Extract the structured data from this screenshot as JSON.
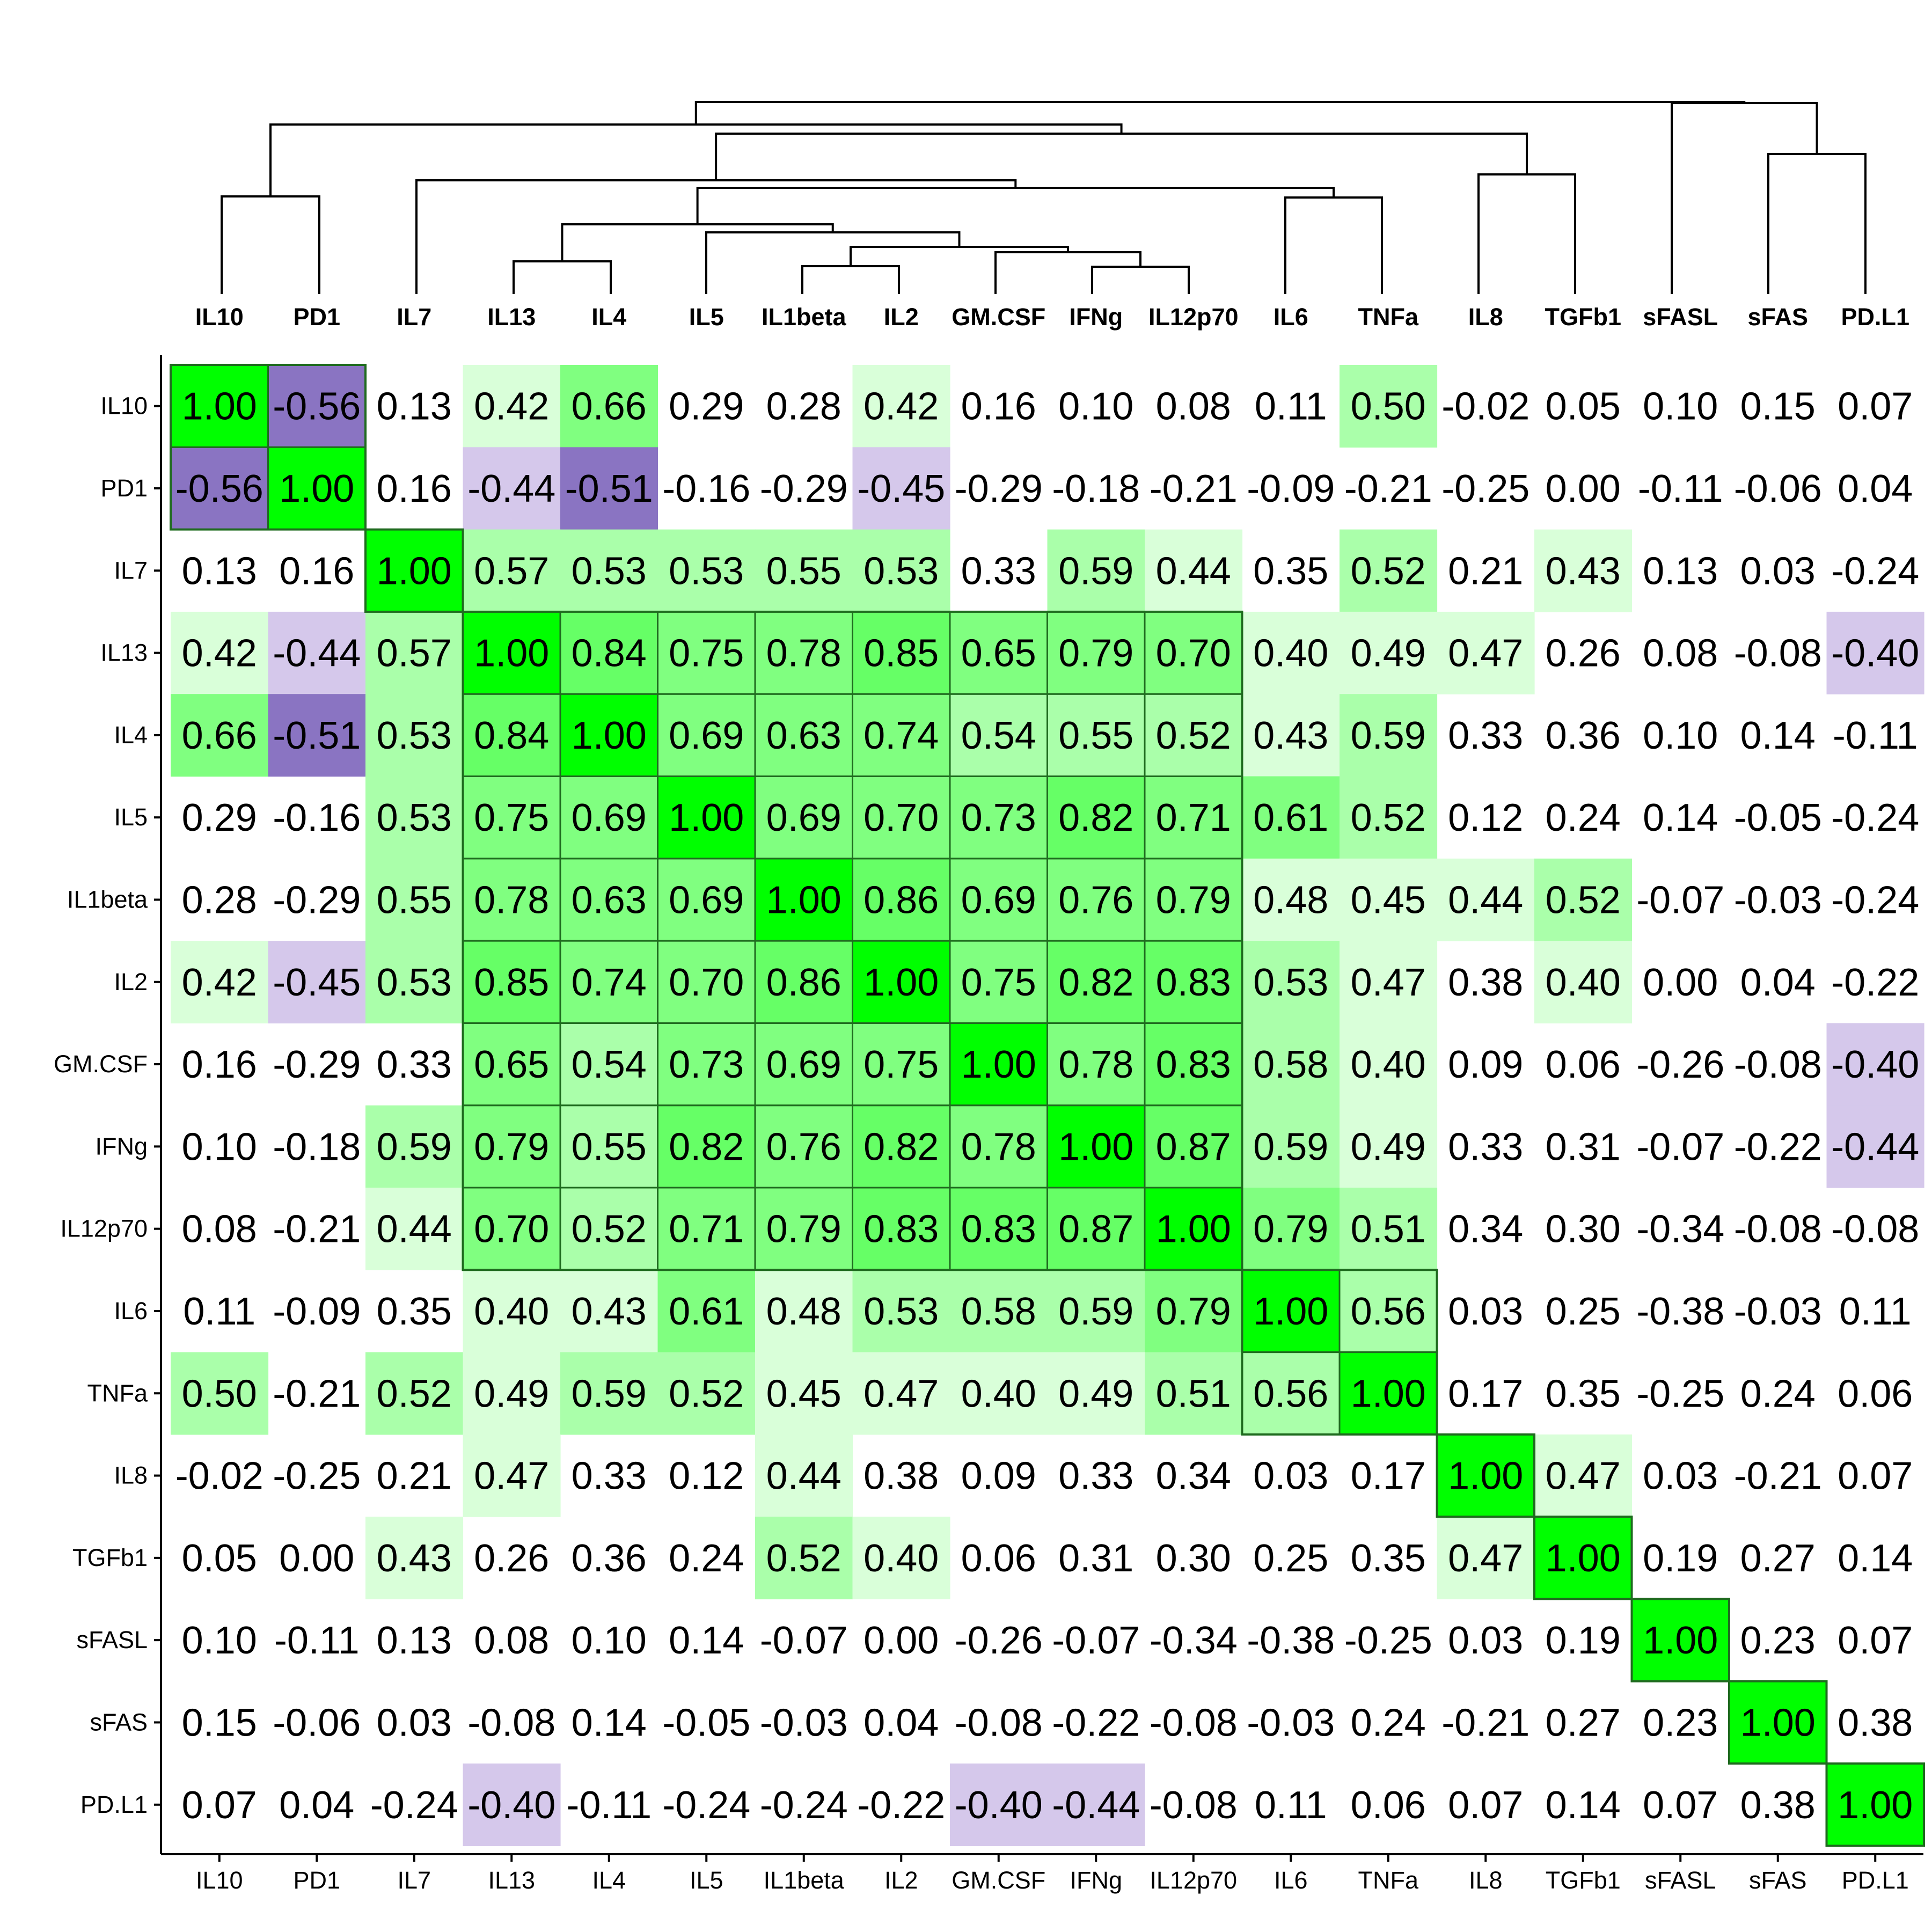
{
  "chart_data": {
    "type": "heatmap",
    "variables": [
      "IL10",
      "PD1",
      "IL7",
      "IL13",
      "IL4",
      "IL5",
      "IL1beta",
      "IL2",
      "GM.CSF",
      "IFNg",
      "IL12p70",
      "IL6",
      "TNFa",
      "IL8",
      "TGFb1",
      "sFASL",
      "sFAS",
      "PD.L1"
    ],
    "tick_text": [
      "0.00",
      "1.00",
      "0.08",
      "0.10",
      "0.11",
      "0.13",
      "0.16",
      "0.05",
      "0.15",
      "0.07",
      "0.04",
      "0.03",
      "0.14",
      "0.06",
      "-0.02",
      "-0.03",
      "-0.05",
      "-0.06",
      "-0.07",
      "-0.08",
      "-0.09",
      "-0.11",
      "-0.16",
      "-0.18",
      "-0.21",
      "-0.22",
      "-0.24",
      "-0.25",
      "-0.26",
      "-0.29",
      "-0.34",
      "-0.38",
      "-0.40",
      "-0.44",
      "-0.45",
      "-0.51",
      "-0.56"
    ],
    "values": [
      [
        "1.00",
        "-0.56",
        "0.13",
        "0.42",
        "0.66",
        "0.29",
        "0.28",
        "0.42",
        "0.16",
        "0.10",
        "0.08",
        "0.11",
        "0.50",
        "-0.02",
        "0.05",
        "0.10",
        "0.15",
        "0.07"
      ],
      [
        "-0.56",
        "1.00",
        "0.16",
        "-0.44",
        "-0.51",
        "-0.16",
        "-0.29",
        "-0.45",
        "-0.29",
        "-0.18",
        "-0.21",
        "-0.09",
        "-0.21",
        "-0.25",
        "0.00",
        "-0.11",
        "-0.06",
        "0.04"
      ],
      [
        "0.13",
        "0.16",
        "1.00",
        "0.57",
        "0.53",
        "0.53",
        "0.55",
        "0.53",
        "0.33",
        "0.59",
        "0.44",
        "0.35",
        "0.52",
        "0.21",
        "0.43",
        "0.13",
        "0.03",
        "-0.24"
      ],
      [
        "0.42",
        "-0.44",
        "0.57",
        "1.00",
        "0.84",
        "0.75",
        "0.78",
        "0.85",
        "0.65",
        "0.79",
        "0.70",
        "0.40",
        "0.49",
        "0.47",
        "0.26",
        "0.08",
        "-0.08",
        "-0.40"
      ],
      [
        "0.66",
        "-0.51",
        "0.53",
        "0.84",
        "1.00",
        "0.69",
        "0.63",
        "0.74",
        "0.54",
        "0.55",
        "0.52",
        "0.43",
        "0.59",
        "0.33",
        "0.36",
        "0.10",
        "0.14",
        "-0.11"
      ],
      [
        "0.29",
        "-0.16",
        "0.53",
        "0.75",
        "0.69",
        "1.00",
        "0.69",
        "0.70",
        "0.73",
        "0.82",
        "0.71",
        "0.61",
        "0.52",
        "0.12",
        "0.24",
        "0.14",
        "-0.05",
        "-0.24"
      ],
      [
        "0.28",
        "-0.29",
        "0.55",
        "0.78",
        "0.63",
        "0.69",
        "1.00",
        "0.86",
        "0.69",
        "0.76",
        "0.79",
        "0.48",
        "0.45",
        "0.44",
        "0.52",
        "-0.07",
        "-0.03",
        "-0.24"
      ],
      [
        "0.42",
        "-0.45",
        "0.53",
        "0.85",
        "0.74",
        "0.70",
        "0.86",
        "1.00",
        "0.75",
        "0.82",
        "0.83",
        "0.53",
        "0.47",
        "0.38",
        "0.40",
        "0.00",
        "0.04",
        "-0.22"
      ],
      [
        "0.16",
        "-0.29",
        "0.33",
        "0.65",
        "0.54",
        "0.73",
        "0.69",
        "0.75",
        "1.00",
        "0.78",
        "0.83",
        "0.58",
        "0.40",
        "0.09",
        "0.06",
        "-0.26",
        "-0.08",
        "-0.40"
      ],
      [
        "0.10",
        "-0.18",
        "0.59",
        "0.79",
        "0.55",
        "0.82",
        "0.76",
        "0.82",
        "0.78",
        "1.00",
        "0.87",
        "0.59",
        "0.49",
        "0.33",
        "0.31",
        "-0.07",
        "-0.22",
        "-0.44"
      ],
      [
        "0.08",
        "-0.21",
        "0.44",
        "0.70",
        "0.52",
        "0.71",
        "0.79",
        "0.83",
        "0.83",
        "0.87",
        "1.00",
        "0.79",
        "0.51",
        "0.34",
        "0.30",
        "-0.34",
        "-0.08",
        "-0.08"
      ],
      [
        "0.11",
        "-0.09",
        "0.35",
        "0.40",
        "0.43",
        "0.61",
        "0.48",
        "0.53",
        "0.58",
        "0.59",
        "0.79",
        "1.00",
        "0.56",
        "0.03",
        "0.25",
        "-0.38",
        "-0.03",
        "0.11"
      ],
      [
        "0.50",
        "-0.21",
        "0.52",
        "0.49",
        "0.59",
        "0.52",
        "0.45",
        "0.47",
        "0.40",
        "0.49",
        "0.51",
        "0.56",
        "1.00",
        "0.17",
        "0.35",
        "-0.25",
        "0.24",
        "0.06"
      ],
      [
        "-0.02",
        "-0.25",
        "0.21",
        "0.47",
        "0.33",
        "0.12",
        "0.44",
        "0.38",
        "0.09",
        "0.33",
        "0.34",
        "0.03",
        "0.17",
        "1.00",
        "0.47",
        "0.03",
        "-0.21",
        "0.07"
      ],
      [
        "0.05",
        "0.00",
        "0.43",
        "0.26",
        "0.36",
        "0.24",
        "0.52",
        "0.40",
        "0.06",
        "0.31",
        "0.30",
        "0.25",
        "0.35",
        "0.47",
        "1.00",
        "0.19",
        "0.27",
        "0.14"
      ],
      [
        "0.10",
        "-0.11",
        "0.13",
        "0.08",
        "0.10",
        "0.14",
        "-0.07",
        "0.00",
        "-0.26",
        "-0.07",
        "-0.34",
        "-0.38",
        "-0.25",
        "0.03",
        "0.19",
        "1.00",
        "0.23",
        "0.07"
      ],
      [
        "0.15",
        "-0.06",
        "0.03",
        "-0.08",
        "0.14",
        "-0.05",
        "-0.03",
        "0.04",
        "-0.08",
        "-0.22",
        "-0.08",
        "-0.03",
        "0.24",
        "-0.21",
        "0.27",
        "0.23",
        "1.00",
        "0.38"
      ],
      [
        "0.07",
        "0.04",
        "-0.24",
        "-0.40",
        "-0.11",
        "-0.24",
        "-0.24",
        "-0.22",
        "-0.40",
        "-0.44",
        "-0.08",
        "0.11",
        "0.06",
        "0.07",
        "0.14",
        "0.07",
        "0.38",
        "1.00"
      ]
    ],
    "color_scale": {
      "1.00": "#00ff00",
      "0.80_to_0.99": "#66ff66",
      "0.60_to_0.79": "#80ff80",
      "0.50_to_0.59": "#aaffaa",
      "0.40_to_0.49": "#d9ffd9",
      "-0.40_to_-0.49": "#d5c8eb",
      "-0.50_and_below": "#8a74c2",
      "other": "#ffffff"
    },
    "cluster_boxes": [
      [
        0,
        1
      ],
      [
        2,
        2
      ],
      [
        3,
        10
      ],
      [
        11,
        12
      ],
      [
        13,
        13
      ],
      [
        14,
        14
      ],
      [
        15,
        15
      ],
      [
        16,
        16
      ],
      [
        17,
        17
      ]
    ],
    "dendrogram": "hierarchical clustering tree drawn above the columns",
    "grid": false,
    "legend": "none"
  }
}
